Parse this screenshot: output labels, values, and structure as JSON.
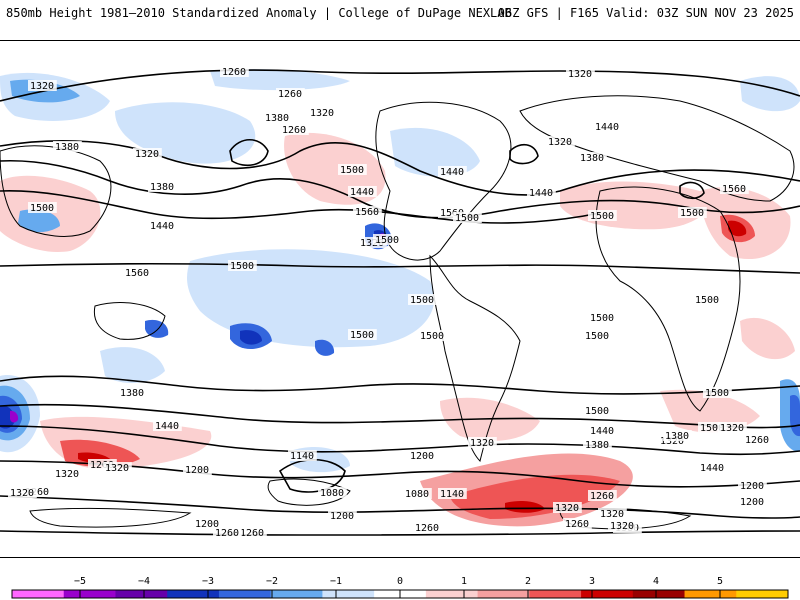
{
  "header": {
    "title": "850mb Height 1981–2010 Standardized Anomaly | College of DuPage NEXLAB",
    "run_info": "06Z GFS | F165 Valid: 03Z SUN NOV 23 2025"
  },
  "map": {
    "variable": "850mb Height",
    "model": "GFS",
    "contour_labels": [
      "1260",
      "1260",
      "1320",
      "1320",
      "1320",
      "1380",
      "1260",
      "1320",
      "1380",
      "1500",
      "1440",
      "1440",
      "1500",
      "1560",
      "1560",
      "1500",
      "1440",
      "1320",
      "1380",
      "1440",
      "1560",
      "1500",
      "1320",
      "1380",
      "1440",
      "1500",
      "1560",
      "1500",
      "1500",
      "1500",
      "1500",
      "1500",
      "1500",
      "1380",
      "1440",
      "1500",
      "1500",
      "1440",
      "1380",
      "1320",
      "1320",
      "1260",
      "1200",
      "1140",
      "1080",
      "1080",
      "1140",
      "1200",
      "1200",
      "1320",
      "1320",
      "1260",
      "1260",
      "1260",
      "1320",
      "1380",
      "1440",
      "1320",
      "1260",
      "1200",
      "1320",
      "1260",
      "1200",
      "1320",
      "1320",
      "1380",
      "1260",
      "1200",
      "1260",
      "1500",
      "1500",
      "1500"
    ]
  },
  "legend": {
    "ticks": [
      "−5",
      "−4",
      "−3",
      "−2",
      "−1",
      "0",
      "1",
      "2",
      "3",
      "4",
      "5"
    ],
    "colors": [
      "#ff66ff",
      "#9900cc",
      "#6600aa",
      "#1133bb",
      "#3366dd",
      "#66aaee",
      "#cfe3fb",
      "#ffffff",
      "#fbd0d0",
      "#f5a0a0",
      "#ee5555",
      "#cc0000",
      "#990000",
      "#ff9900",
      "#ffcc00"
    ]
  }
}
